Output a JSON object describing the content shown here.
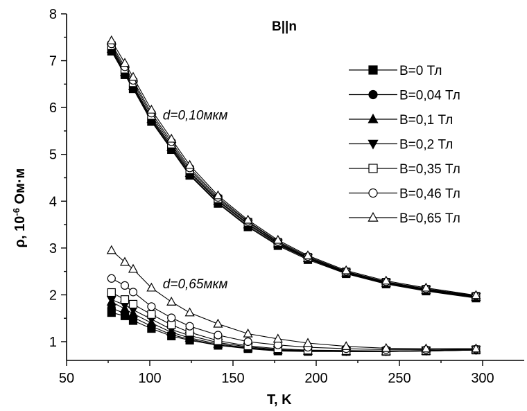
{
  "chart_data": {
    "type": "line",
    "title": "B||n",
    "xlabel": "T, K",
    "ylabel": {
      "base": "ρ, 10",
      "exponent": "-6",
      "unit": " Ом·м"
    },
    "xlim": [
      50,
      325
    ],
    "ylim": [
      0.6,
      8
    ],
    "x_ticks": [
      50,
      100,
      150,
      200,
      250,
      300
    ],
    "y_ticks": [
      1,
      2,
      3,
      4,
      5,
      6,
      7,
      8
    ],
    "grid": false,
    "legend_position": "right",
    "annotations": [
      {
        "text": "d=0,10мкм",
        "x": 102,
        "y": 5.8
      },
      {
        "text": "d=0,65мкм",
        "x": 102,
        "y": 2.2
      }
    ],
    "x": [
      77,
      85,
      90,
      101,
      113,
      124,
      141,
      159,
      177,
      195,
      218,
      242,
      266,
      296
    ],
    "series": [
      {
        "name": "B=0 Тл",
        "marker": "square-filled",
        "group": "thin",
        "values": [
          7.2,
          6.7,
          6.4,
          5.7,
          5.1,
          4.55,
          3.95,
          3.45,
          3.05,
          2.75,
          2.45,
          2.23,
          2.08,
          1.93
        ]
      },
      {
        "name": "B=0,04 Тл",
        "marker": "circle-filled",
        "group": "thin",
        "values": [
          7.22,
          6.72,
          6.42,
          5.72,
          5.12,
          4.57,
          3.97,
          3.47,
          3.07,
          2.77,
          2.46,
          2.24,
          2.09,
          1.94
        ]
      },
      {
        "name": "B=0,1 Тл",
        "marker": "triangle-up-filled",
        "group": "thin",
        "values": [
          7.25,
          6.75,
          6.45,
          5.75,
          5.15,
          4.6,
          4.0,
          3.5,
          3.09,
          2.78,
          2.47,
          2.25,
          2.1,
          1.95
        ]
      },
      {
        "name": "B=0,2 Тл",
        "marker": "triangle-down-filled",
        "group": "thin",
        "values": [
          7.28,
          6.78,
          6.48,
          5.78,
          5.18,
          4.63,
          4.02,
          3.52,
          3.1,
          2.79,
          2.48,
          2.26,
          2.11,
          1.96
        ]
      },
      {
        "name": "B=0,35 Тл",
        "marker": "square-open",
        "group": "thin",
        "values": [
          7.32,
          6.82,
          6.53,
          5.83,
          5.22,
          4.67,
          4.05,
          3.55,
          3.12,
          2.8,
          2.49,
          2.27,
          2.12,
          1.97
        ]
      },
      {
        "name": "B=0,46 Тл",
        "marker": "circle-open",
        "group": "thin",
        "values": [
          7.36,
          6.87,
          6.58,
          5.88,
          5.27,
          4.71,
          4.08,
          3.57,
          3.14,
          2.82,
          2.5,
          2.28,
          2.13,
          1.98
        ]
      },
      {
        "name": "B=0,65 Тл",
        "marker": "triangle-up-open",
        "group": "thin",
        "values": [
          7.43,
          6.95,
          6.65,
          5.95,
          5.33,
          4.77,
          4.12,
          3.6,
          3.17,
          2.84,
          2.52,
          2.3,
          2.15,
          1.99
        ]
      },
      {
        "name": "B=0 Тл",
        "marker": "square-filled",
        "group": "thick",
        "values": [
          1.62,
          1.55,
          1.45,
          1.28,
          1.12,
          1.03,
          0.92,
          0.85,
          0.8,
          0.79,
          0.79,
          0.79,
          0.8,
          0.82
        ]
      },
      {
        "name": "B=0,04 Тл",
        "marker": "circle-filled",
        "group": "thick",
        "values": [
          1.72,
          1.6,
          1.52,
          1.33,
          1.15,
          1.05,
          0.93,
          0.86,
          0.81,
          0.8,
          0.79,
          0.79,
          0.8,
          0.82
        ]
      },
      {
        "name": "B=0,1 Тл",
        "marker": "triangle-up-filled",
        "group": "thick",
        "values": [
          1.85,
          1.7,
          1.6,
          1.4,
          1.2,
          1.08,
          0.95,
          0.87,
          0.82,
          0.8,
          0.79,
          0.79,
          0.8,
          0.82
        ]
      },
      {
        "name": "B=0,2 Тл",
        "marker": "triangle-down-filled",
        "group": "thick",
        "values": [
          1.9,
          1.78,
          1.68,
          1.48,
          1.26,
          1.13,
          0.98,
          0.89,
          0.83,
          0.81,
          0.8,
          0.8,
          0.81,
          0.83
        ]
      },
      {
        "name": "B=0,35 Тл",
        "marker": "square-open",
        "group": "thick",
        "values": [
          2.05,
          1.9,
          1.8,
          1.58,
          1.36,
          1.2,
          1.02,
          0.91,
          0.85,
          0.82,
          0.81,
          0.8,
          0.81,
          0.83
        ]
      },
      {
        "name": "B=0,46 Тл",
        "marker": "circle-open",
        "group": "thick",
        "values": [
          2.35,
          2.2,
          2.06,
          1.75,
          1.51,
          1.33,
          1.14,
          1.0,
          0.93,
          0.88,
          0.85,
          0.83,
          0.83,
          0.84
        ]
      },
      {
        "name": "B=0,65 Тл",
        "marker": "triangle-up-open",
        "group": "thick",
        "values": [
          2.95,
          2.7,
          2.55,
          2.15,
          1.85,
          1.62,
          1.38,
          1.17,
          1.06,
          0.97,
          0.9,
          0.86,
          0.85,
          0.85
        ]
      }
    ]
  }
}
